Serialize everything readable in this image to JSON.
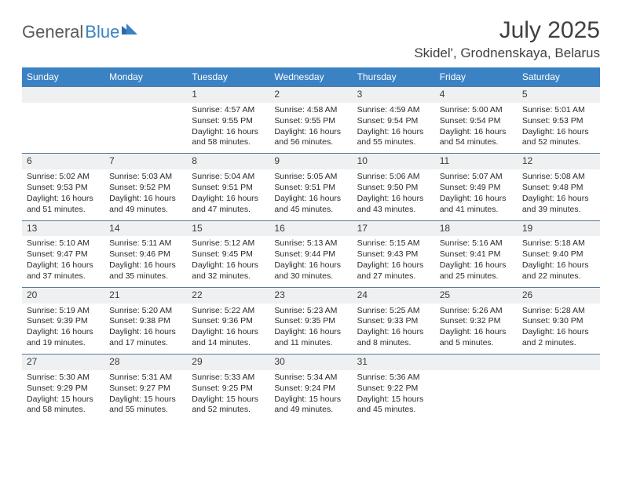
{
  "logo": {
    "part1": "General",
    "part2": "Blue"
  },
  "title": "July 2025",
  "location": "Skidel', Grodnenskaya, Belarus",
  "colors": {
    "header_bg": "#3b82c4",
    "header_text": "#ffffff",
    "daynum_bg": "#eef0f1",
    "daynum_border": "#5b7a99",
    "body_text": "#2a2a2a",
    "title_text": "#404040"
  },
  "headers": [
    "Sunday",
    "Monday",
    "Tuesday",
    "Wednesday",
    "Thursday",
    "Friday",
    "Saturday"
  ],
  "weeks": [
    [
      null,
      null,
      {
        "n": "1",
        "sr": "4:57 AM",
        "ss": "9:55 PM",
        "dl": "16 hours and 58 minutes."
      },
      {
        "n": "2",
        "sr": "4:58 AM",
        "ss": "9:55 PM",
        "dl": "16 hours and 56 minutes."
      },
      {
        "n": "3",
        "sr": "4:59 AM",
        "ss": "9:54 PM",
        "dl": "16 hours and 55 minutes."
      },
      {
        "n": "4",
        "sr": "5:00 AM",
        "ss": "9:54 PM",
        "dl": "16 hours and 54 minutes."
      },
      {
        "n": "5",
        "sr": "5:01 AM",
        "ss": "9:53 PM",
        "dl": "16 hours and 52 minutes."
      }
    ],
    [
      {
        "n": "6",
        "sr": "5:02 AM",
        "ss": "9:53 PM",
        "dl": "16 hours and 51 minutes."
      },
      {
        "n": "7",
        "sr": "5:03 AM",
        "ss": "9:52 PM",
        "dl": "16 hours and 49 minutes."
      },
      {
        "n": "8",
        "sr": "5:04 AM",
        "ss": "9:51 PM",
        "dl": "16 hours and 47 minutes."
      },
      {
        "n": "9",
        "sr": "5:05 AM",
        "ss": "9:51 PM",
        "dl": "16 hours and 45 minutes."
      },
      {
        "n": "10",
        "sr": "5:06 AM",
        "ss": "9:50 PM",
        "dl": "16 hours and 43 minutes."
      },
      {
        "n": "11",
        "sr": "5:07 AM",
        "ss": "9:49 PM",
        "dl": "16 hours and 41 minutes."
      },
      {
        "n": "12",
        "sr": "5:08 AM",
        "ss": "9:48 PM",
        "dl": "16 hours and 39 minutes."
      }
    ],
    [
      {
        "n": "13",
        "sr": "5:10 AM",
        "ss": "9:47 PM",
        "dl": "16 hours and 37 minutes."
      },
      {
        "n": "14",
        "sr": "5:11 AM",
        "ss": "9:46 PM",
        "dl": "16 hours and 35 minutes."
      },
      {
        "n": "15",
        "sr": "5:12 AM",
        "ss": "9:45 PM",
        "dl": "16 hours and 32 minutes."
      },
      {
        "n": "16",
        "sr": "5:13 AM",
        "ss": "9:44 PM",
        "dl": "16 hours and 30 minutes."
      },
      {
        "n": "17",
        "sr": "5:15 AM",
        "ss": "9:43 PM",
        "dl": "16 hours and 27 minutes."
      },
      {
        "n": "18",
        "sr": "5:16 AM",
        "ss": "9:41 PM",
        "dl": "16 hours and 25 minutes."
      },
      {
        "n": "19",
        "sr": "5:18 AM",
        "ss": "9:40 PM",
        "dl": "16 hours and 22 minutes."
      }
    ],
    [
      {
        "n": "20",
        "sr": "5:19 AM",
        "ss": "9:39 PM",
        "dl": "16 hours and 19 minutes."
      },
      {
        "n": "21",
        "sr": "5:20 AM",
        "ss": "9:38 PM",
        "dl": "16 hours and 17 minutes."
      },
      {
        "n": "22",
        "sr": "5:22 AM",
        "ss": "9:36 PM",
        "dl": "16 hours and 14 minutes."
      },
      {
        "n": "23",
        "sr": "5:23 AM",
        "ss": "9:35 PM",
        "dl": "16 hours and 11 minutes."
      },
      {
        "n": "24",
        "sr": "5:25 AM",
        "ss": "9:33 PM",
        "dl": "16 hours and 8 minutes."
      },
      {
        "n": "25",
        "sr": "5:26 AM",
        "ss": "9:32 PM",
        "dl": "16 hours and 5 minutes."
      },
      {
        "n": "26",
        "sr": "5:28 AM",
        "ss": "9:30 PM",
        "dl": "16 hours and 2 minutes."
      }
    ],
    [
      {
        "n": "27",
        "sr": "5:30 AM",
        "ss": "9:29 PM",
        "dl": "15 hours and 58 minutes."
      },
      {
        "n": "28",
        "sr": "5:31 AM",
        "ss": "9:27 PM",
        "dl": "15 hours and 55 minutes."
      },
      {
        "n": "29",
        "sr": "5:33 AM",
        "ss": "9:25 PM",
        "dl": "15 hours and 52 minutes."
      },
      {
        "n": "30",
        "sr": "5:34 AM",
        "ss": "9:24 PM",
        "dl": "15 hours and 49 minutes."
      },
      {
        "n": "31",
        "sr": "5:36 AM",
        "ss": "9:22 PM",
        "dl": "15 hours and 45 minutes."
      },
      null,
      null
    ]
  ],
  "labels": {
    "sunrise": "Sunrise:",
    "sunset": "Sunset:",
    "daylight": "Daylight:"
  }
}
